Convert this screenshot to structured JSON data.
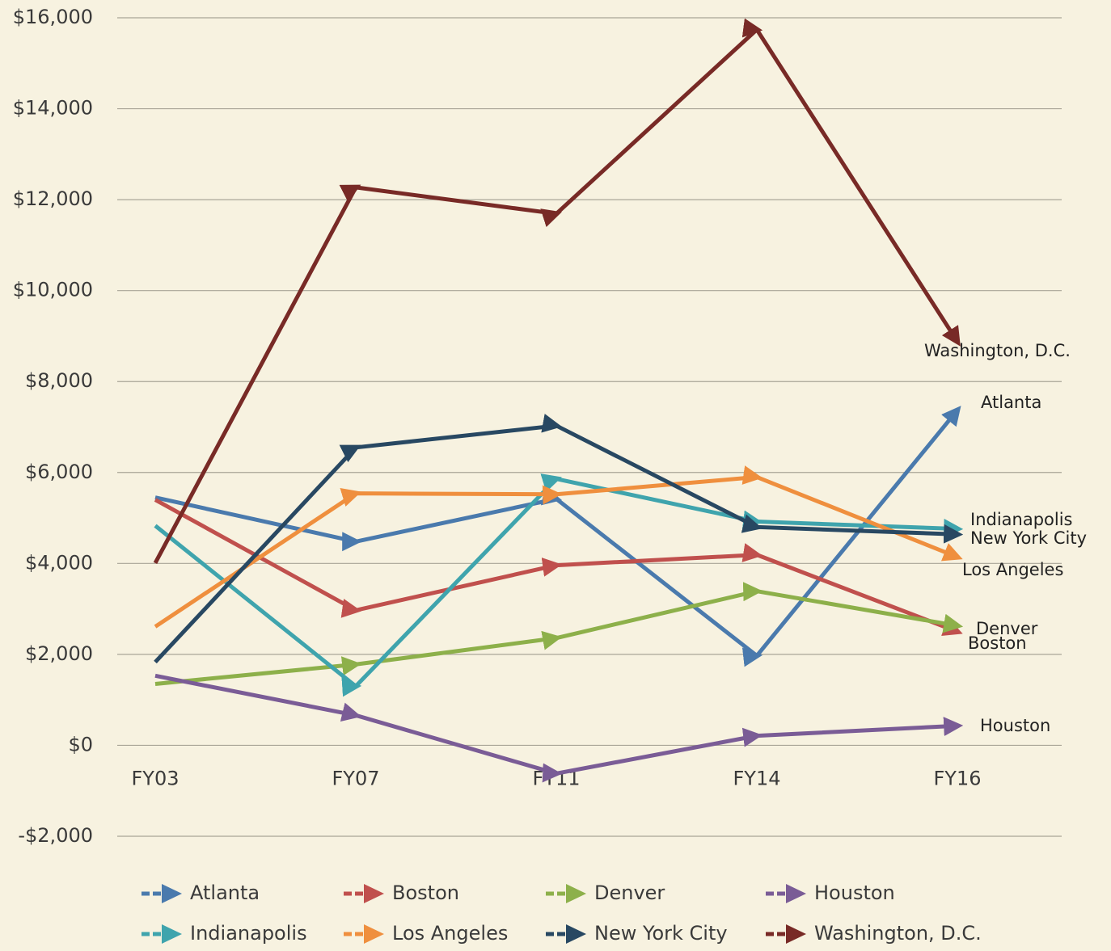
{
  "chart_data": {
    "type": "line",
    "categories": [
      "FY03",
      "FY07",
      "FY11",
      "FY14",
      "FY16"
    ],
    "series": [
      {
        "name": "Atlanta",
        "color": "#4a7aad",
        "values": [
          5450,
          4480,
          5420,
          1970,
          7370
        ]
      },
      {
        "name": "Boston",
        "color": "#c0504d",
        "values": [
          5400,
          2970,
          3960,
          4190,
          2500
        ]
      },
      {
        "name": "Denver",
        "color": "#8db04a",
        "values": [
          1350,
          1780,
          2360,
          3390,
          2630
        ]
      },
      {
        "name": "Houston",
        "color": "#7a5c96",
        "values": [
          1530,
          660,
          -620,
          210,
          430
        ]
      },
      {
        "name": "Indianapolis",
        "color": "#3fa4ad",
        "values": [
          4830,
          1300,
          5860,
          4920,
          4760
        ]
      },
      {
        "name": "Los Angeles",
        "color": "#ef8f3e",
        "values": [
          2610,
          5540,
          5520,
          5900,
          4140
        ]
      },
      {
        "name": "New York City",
        "color": "#284862",
        "values": [
          1830,
          6550,
          7030,
          4800,
          4640
        ]
      },
      {
        "name": "Washington, D.C.",
        "color": "#782a26",
        "values": [
          4010,
          12270,
          11690,
          15740,
          8880
        ]
      }
    ],
    "ylim": [
      -2000,
      16000
    ],
    "yticks": [
      {
        "value": -2000,
        "label": "-$2,000"
      },
      {
        "value": 0,
        "label": "$0"
      },
      {
        "value": 2000,
        "label": "$2,000"
      },
      {
        "value": 4000,
        "label": "$4,000"
      },
      {
        "value": 6000,
        "label": "$6,000"
      },
      {
        "value": 8000,
        "label": "$8,000"
      },
      {
        "value": 10000,
        "label": "$10,000"
      },
      {
        "value": 12000,
        "label": "$12,000"
      },
      {
        "value": 14000,
        "label": "$14,000"
      },
      {
        "value": 16000,
        "label": "$16,000"
      }
    ],
    "grid": true
  }
}
